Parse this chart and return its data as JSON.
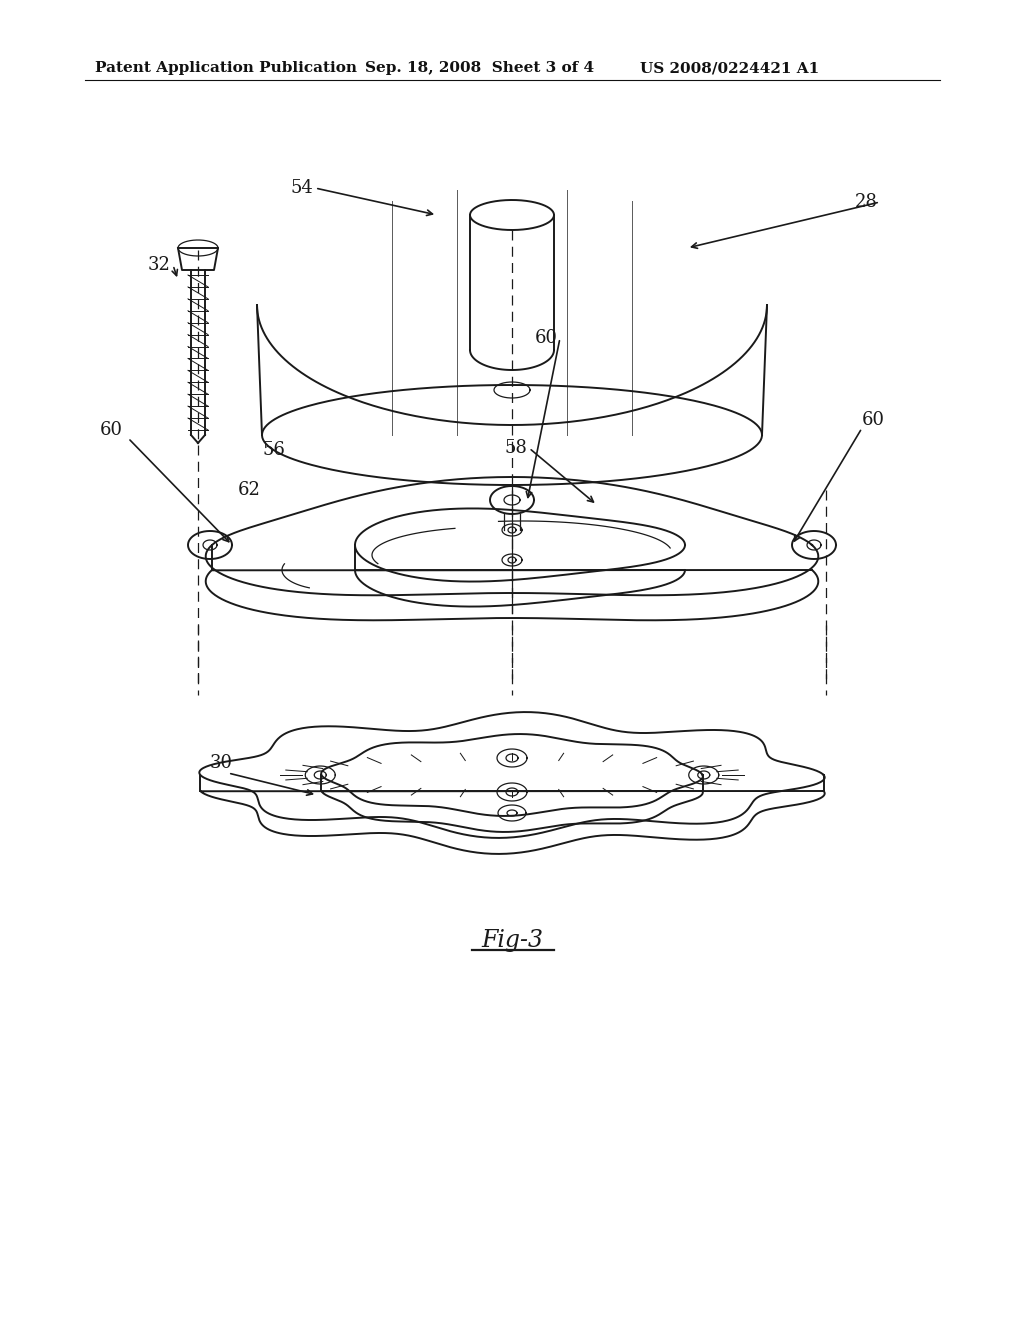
{
  "header_left": "Patent Application Publication",
  "header_mid": "Sep. 18, 2008  Sheet 3 of 4",
  "header_right": "US 2008/0224421 A1",
  "figure_label": "Fig-3",
  "bg": "#ffffff",
  "lc": "#1a1a1a",
  "lw": 1.4,
  "lw_thin": 0.9,
  "font_size": 13,
  "fig_label_size": 17
}
